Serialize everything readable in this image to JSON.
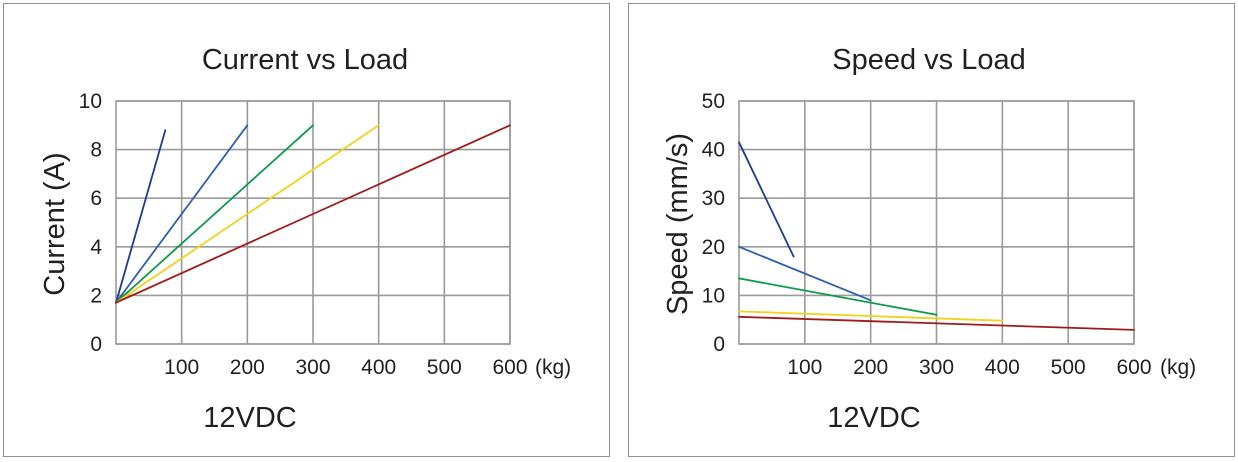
{
  "chart_data": [
    {
      "type": "line",
      "title": "Current vs Load",
      "ylabel": "Current (A)",
      "x_unit": "(kg)",
      "subtitle": "12VDC",
      "xlim": [
        0,
        600
      ],
      "ylim": [
        0,
        10
      ],
      "x_ticks": [
        100,
        200,
        300,
        400,
        500,
        600
      ],
      "y_ticks": [
        0,
        2,
        4,
        6,
        8,
        10
      ],
      "grid": true,
      "series": [
        {
          "color": "#1f3c8c",
          "points": [
            [
              0,
              1.7
            ],
            [
              75,
              8.8
            ]
          ]
        },
        {
          "color": "#2e5fae",
          "points": [
            [
              0,
              1.7
            ],
            [
              200,
              9.0
            ]
          ]
        },
        {
          "color": "#0a9b4a",
          "points": [
            [
              0,
              1.7
            ],
            [
              300,
              9.0
            ]
          ]
        },
        {
          "color": "#f2d21c",
          "points": [
            [
              0,
              1.7
            ],
            [
              400,
              9.0
            ]
          ]
        },
        {
          "color": "#a01a1a",
          "points": [
            [
              0,
              1.7
            ],
            [
              600,
              9.0
            ]
          ]
        }
      ]
    },
    {
      "type": "line",
      "title": "Speed vs Load",
      "ylabel": "Speed (mm/s)",
      "x_unit": "(kg)",
      "subtitle": "12VDC",
      "xlim": [
        0,
        600
      ],
      "ylim": [
        0,
        50
      ],
      "x_ticks": [
        100,
        200,
        300,
        400,
        500,
        600
      ],
      "y_ticks": [
        0,
        10,
        20,
        30,
        40,
        50
      ],
      "grid": true,
      "series": [
        {
          "color": "#1f3c8c",
          "points": [
            [
              0,
              41.5
            ],
            [
              83,
              18.0
            ]
          ]
        },
        {
          "color": "#2e5fae",
          "points": [
            [
              0,
              20.0
            ],
            [
              200,
              9.0
            ]
          ]
        },
        {
          "color": "#0a9b4a",
          "points": [
            [
              0,
              13.5
            ],
            [
              300,
              6.0
            ]
          ]
        },
        {
          "color": "#f2d21c",
          "points": [
            [
              0,
              6.7
            ],
            [
              400,
              4.8
            ]
          ]
        },
        {
          "color": "#a01a1a",
          "points": [
            [
              0,
              5.6
            ],
            [
              600,
              2.9
            ]
          ]
        }
      ]
    }
  ]
}
